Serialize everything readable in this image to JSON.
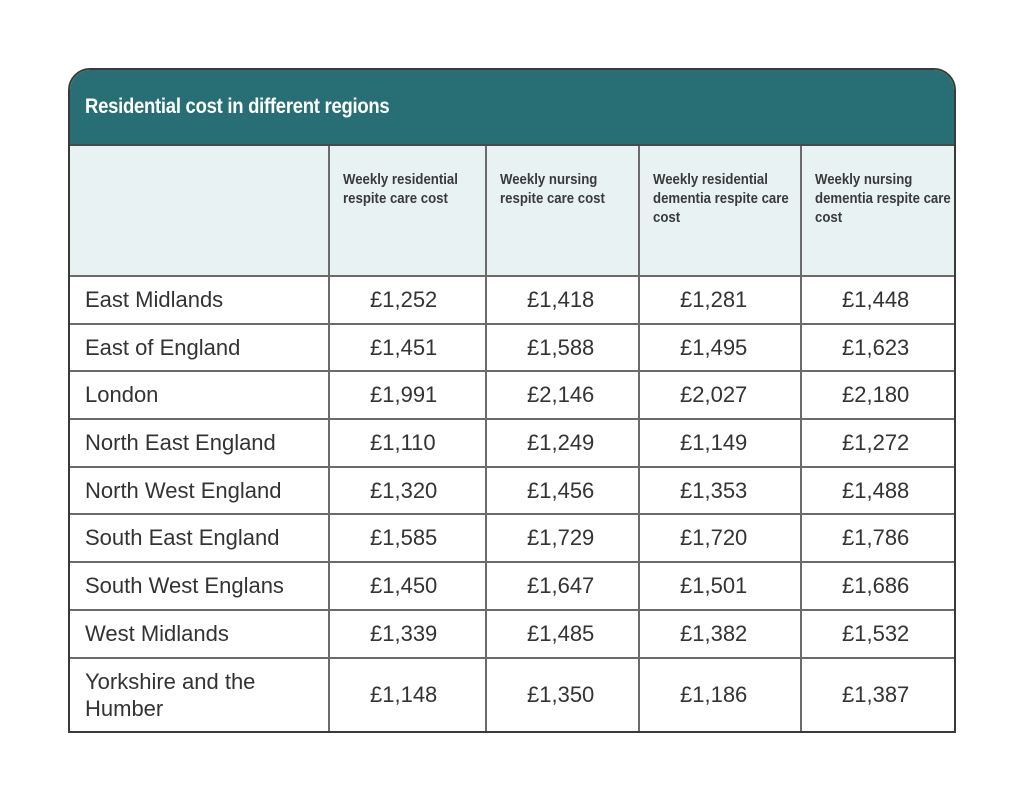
{
  "title": "Residential cost in different regions",
  "columns": [
    "",
    "Weekly residential respite care cost",
    "Weekly nursing respite care cost",
    "Weekly residential dementia respite care cost",
    "Weekly nursing dementia respite care cost"
  ],
  "rows": [
    {
      "region": "East Midlands",
      "values": [
        "£1,252",
        "£1,418",
        "£1,281",
        "£1,448"
      ]
    },
    {
      "region": "East of England",
      "values": [
        "£1,451",
        "£1,588",
        "£1,495",
        "£1,623"
      ]
    },
    {
      "region": "London",
      "values": [
        "£1,991",
        "£2,146",
        "£2,027",
        "£2,180"
      ]
    },
    {
      "region": "North East England",
      "values": [
        "£1,110",
        "£1,249",
        "£1,149",
        "£1,272"
      ]
    },
    {
      "region": "North West England",
      "values": [
        "£1,320",
        "£1,456",
        "£1,353",
        "£1,488"
      ]
    },
    {
      "region": "South East England",
      "values": [
        "£1,585",
        "£1,729",
        "£1,720",
        "£1,786"
      ]
    },
    {
      "region": "South West Englans",
      "values": [
        "£1,450",
        "£1,647",
        "£1,501",
        "£1,686"
      ]
    },
    {
      "region": "West Midlands",
      "values": [
        "£1,339",
        "£1,485",
        "£1,382",
        "£1,532"
      ]
    },
    {
      "region": "Yorkshire and the Humber",
      "values": [
        "£1,148",
        "£1,350",
        "£1,186",
        "£1,387"
      ]
    }
  ],
  "colors": {
    "header_bg": "#276f75",
    "subheader_bg": "#e8f2f3",
    "border": "#6b6b6b"
  }
}
